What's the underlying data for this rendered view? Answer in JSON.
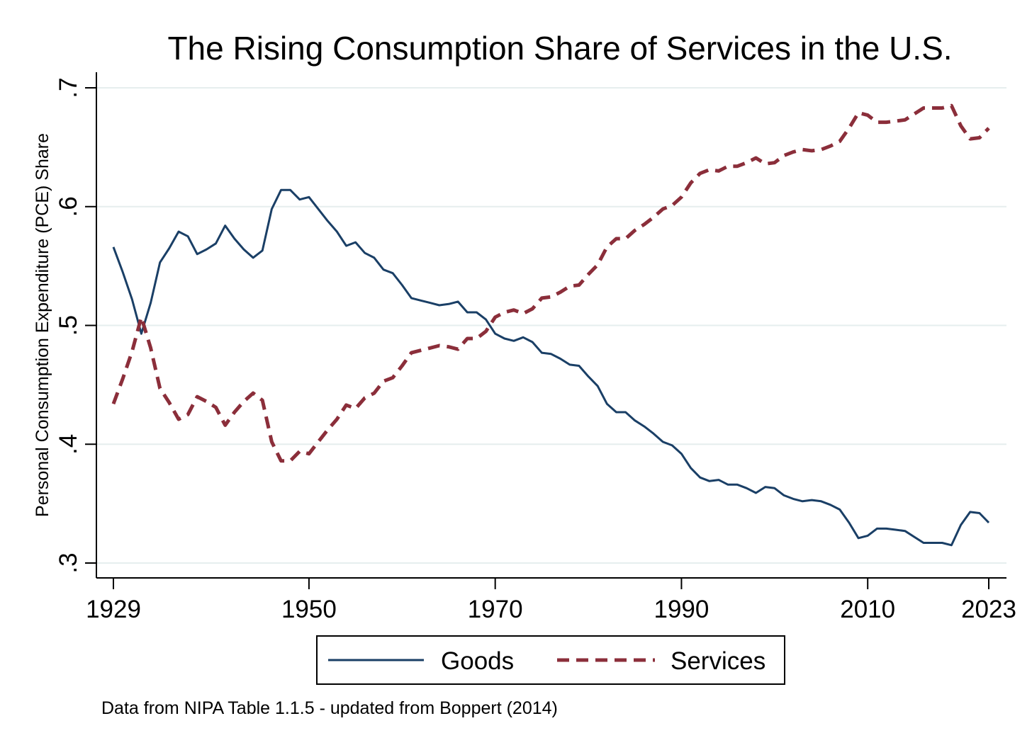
{
  "chart_data": {
    "type": "line",
    "title": "The Rising Consumption Share of Services in the U.S.",
    "ylabel": "Personal Consumption Expenditure (PCE) Share",
    "xlabel": "",
    "xlim": [
      1929,
      2023
    ],
    "ylim": [
      0.3,
      0.7
    ],
    "x_ticks": [
      1929,
      1950,
      1970,
      1990,
      2010,
      2023
    ],
    "y_ticks": [
      0.3,
      0.4,
      0.5,
      0.6,
      0.7
    ],
    "y_tick_labels": [
      ".3",
      ".4",
      ".5",
      ".6",
      ".7"
    ],
    "grid": true,
    "legend_position": "bottom",
    "x": [
      1929,
      1930,
      1931,
      1932,
      1933,
      1934,
      1935,
      1936,
      1937,
      1938,
      1939,
      1940,
      1941,
      1942,
      1943,
      1944,
      1945,
      1946,
      1947,
      1948,
      1949,
      1950,
      1951,
      1952,
      1953,
      1954,
      1955,
      1956,
      1957,
      1958,
      1959,
      1960,
      1961,
      1962,
      1963,
      1964,
      1965,
      1966,
      1967,
      1968,
      1969,
      1970,
      1971,
      1972,
      1973,
      1974,
      1975,
      1976,
      1977,
      1978,
      1979,
      1980,
      1981,
      1982,
      1983,
      1984,
      1985,
      1986,
      1987,
      1988,
      1989,
      1990,
      1991,
      1992,
      1993,
      1994,
      1995,
      1996,
      1997,
      1998,
      1999,
      2000,
      2001,
      2002,
      2003,
      2004,
      2005,
      2006,
      2007,
      2008,
      2009,
      2010,
      2011,
      2012,
      2013,
      2014,
      2015,
      2016,
      2017,
      2018,
      2019,
      2020,
      2021,
      2022,
      2023
    ],
    "series": [
      {
        "name": "Goods",
        "color": "#1a3f66",
        "dash": "solid",
        "values": [
          0.566,
          0.545,
          0.522,
          0.493,
          0.519,
          0.553,
          0.565,
          0.579,
          0.575,
          0.56,
          0.564,
          0.569,
          0.584,
          0.573,
          0.564,
          0.557,
          0.563,
          0.598,
          0.614,
          0.614,
          0.606,
          0.608,
          0.598,
          0.588,
          0.579,
          0.567,
          0.57,
          0.561,
          0.557,
          0.547,
          0.544,
          0.534,
          0.523,
          0.521,
          0.519,
          0.517,
          0.518,
          0.52,
          0.511,
          0.511,
          0.505,
          0.493,
          0.489,
          0.487,
          0.49,
          0.486,
          0.477,
          0.476,
          0.472,
          0.467,
          0.466,
          0.457,
          0.449,
          0.434,
          0.427,
          0.427,
          0.42,
          0.415,
          0.409,
          0.402,
          0.399,
          0.392,
          0.38,
          0.372,
          0.369,
          0.37,
          0.366,
          0.366,
          0.363,
          0.359,
          0.364,
          0.363,
          0.357,
          0.354,
          0.352,
          0.353,
          0.352,
          0.349,
          0.345,
          0.334,
          0.321,
          0.323,
          0.329,
          0.329,
          0.328,
          0.327,
          0.322,
          0.317,
          0.317,
          0.317,
          0.315,
          0.332,
          0.343,
          0.342,
          0.334
        ]
      },
      {
        "name": "Services",
        "color": "#8b2e3a",
        "dash": "dashed",
        "values": [
          0.434,
          0.455,
          0.478,
          0.507,
          0.481,
          0.447,
          0.435,
          0.421,
          0.425,
          0.44,
          0.436,
          0.431,
          0.416,
          0.427,
          0.436,
          0.443,
          0.437,
          0.402,
          0.386,
          0.386,
          0.394,
          0.392,
          0.402,
          0.412,
          0.421,
          0.433,
          0.43,
          0.439,
          0.443,
          0.453,
          0.456,
          0.466,
          0.477,
          0.479,
          0.481,
          0.483,
          0.482,
          0.48,
          0.489,
          0.489,
          0.495,
          0.507,
          0.511,
          0.513,
          0.51,
          0.514,
          0.523,
          0.524,
          0.528,
          0.533,
          0.534,
          0.543,
          0.551,
          0.566,
          0.573,
          0.573,
          0.58,
          0.585,
          0.591,
          0.598,
          0.601,
          0.608,
          0.62,
          0.628,
          0.631,
          0.63,
          0.634,
          0.634,
          0.637,
          0.641,
          0.636,
          0.637,
          0.643,
          0.646,
          0.648,
          0.647,
          0.648,
          0.651,
          0.655,
          0.666,
          0.679,
          0.677,
          0.671,
          0.671,
          0.672,
          0.673,
          0.678,
          0.683,
          0.683,
          0.683,
          0.685,
          0.668,
          0.657,
          0.658,
          0.666
        ]
      }
    ],
    "note": "Data from NIPA Table 1.1.5 - updated from Boppert (2014)"
  }
}
